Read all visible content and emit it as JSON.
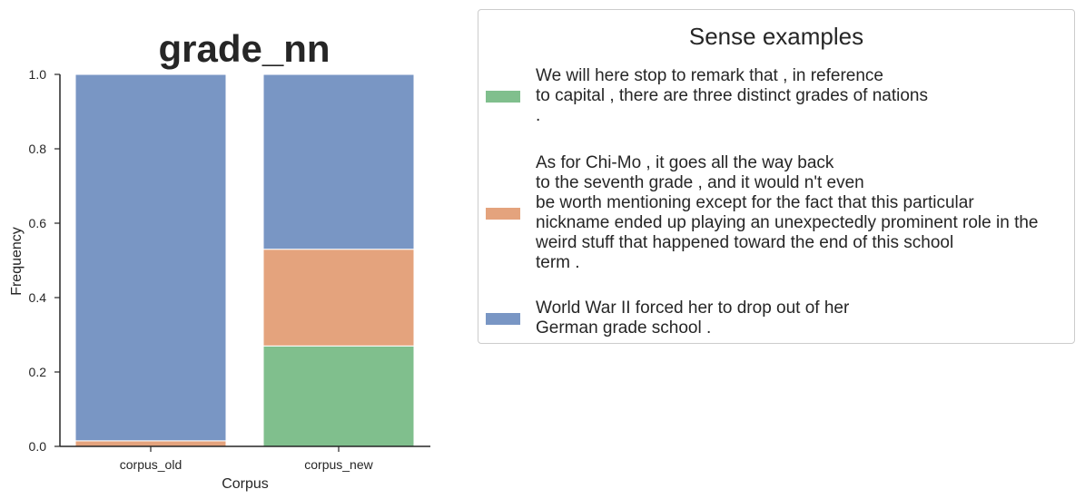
{
  "chart_data": {
    "type": "bar",
    "stacked": true,
    "title": "grade_nn",
    "xlabel": "Corpus",
    "ylabel": "Frequency",
    "categories": [
      "corpus_old",
      "corpus_new"
    ],
    "ylim": [
      0,
      1.0
    ],
    "yticks": [
      "0.0",
      "0.2",
      "0.4",
      "0.6",
      "0.8",
      "1.0"
    ],
    "grid": false,
    "legend_title": "Sense examples",
    "legend_placement": "outside-right",
    "series": [
      {
        "name": "We will here stop to remark that , in reference\nto capital , there are three distinct grades of nations\n.",
        "color": "#80bf8d",
        "values": [
          0.0,
          0.27
        ]
      },
      {
        "name": "As for Chi-Mo , it goes all the way back\nto the seventh grade , and it would n't even\nbe worth mentioning except for the fact that this particular\nnickname ended up playing an unexpectedly prominent role in the\nweird stuff that happened toward the end of this school\nterm .",
        "color": "#e4a37d",
        "values": [
          0.015,
          0.26
        ]
      },
      {
        "name": "World War II forced her to drop out of her\nGerman grade school .",
        "color": "#7996c4",
        "values": [
          0.985,
          0.47
        ]
      }
    ]
  }
}
